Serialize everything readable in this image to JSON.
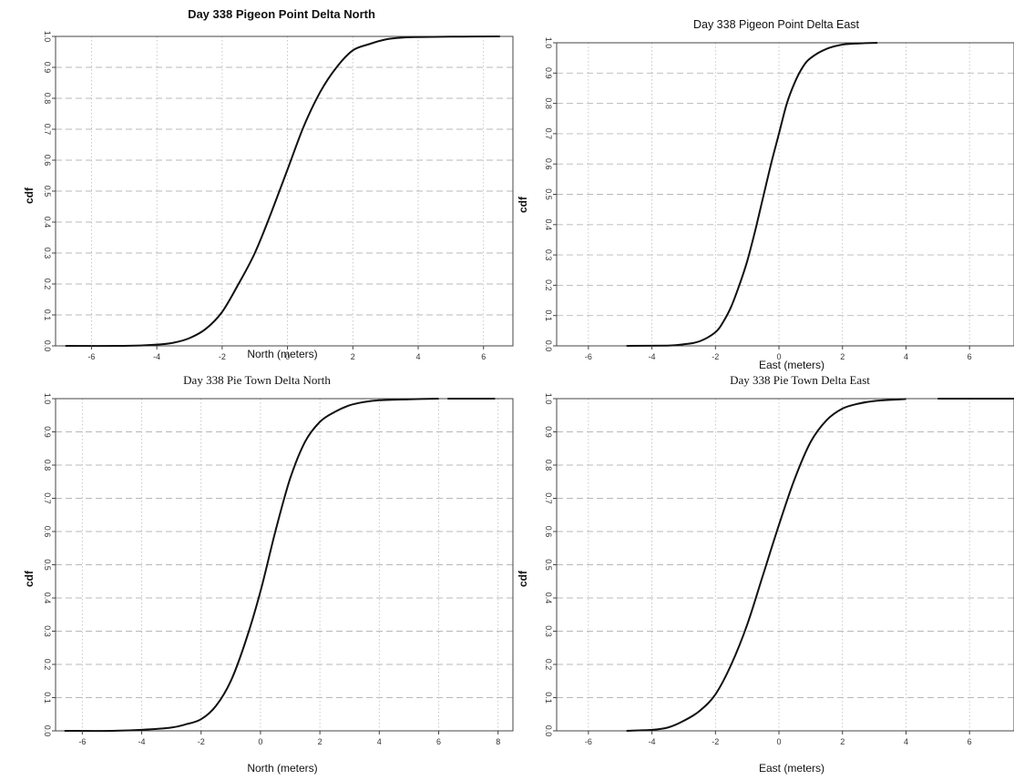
{
  "chart_data": [
    {
      "type": "line",
      "title": "Day 338 Pigeon Point Delta North",
      "xlabel": "North (meters)",
      "ylabel": "cdf",
      "xlim": [
        -7.1,
        6.9
      ],
      "ylim": [
        0,
        1
      ],
      "xticks": [
        -6,
        -4,
        -2,
        0,
        2,
        4,
        6
      ],
      "yticks": [
        0,
        0.1,
        0.2,
        0.3,
        0.4,
        0.5,
        0.6,
        0.7,
        0.8,
        0.9,
        1.0
      ],
      "ytick_labels": [
        "0.0",
        "0.1",
        "0.2",
        "0.3",
        "0.4",
        "0.5",
        "0.6",
        "0.7",
        "0.8",
        "0.9",
        "1.0"
      ],
      "grid": true,
      "series": [
        {
          "x": [
            -6.8,
            -5.0,
            -4.0,
            -3.5,
            -3.0,
            -2.5,
            -2.0,
            -1.5,
            -1.0,
            -0.5,
            0.0,
            0.5,
            1.0,
            1.5,
            2.0,
            2.5,
            3.0,
            3.5,
            4.0,
            5.0,
            6.5
          ],
          "y": [
            0.0,
            0.0,
            0.004,
            0.01,
            0.025,
            0.055,
            0.11,
            0.2,
            0.3,
            0.43,
            0.57,
            0.71,
            0.82,
            0.9,
            0.955,
            0.975,
            0.99,
            0.996,
            0.998,
            0.999,
            1.0
          ]
        }
      ]
    },
    {
      "type": "line",
      "title": "Day 338 Pigeon Point Delta East",
      "xlabel": "East (meters)",
      "ylabel": "cdf",
      "xlim": [
        -7.0,
        7.4
      ],
      "ylim": [
        0,
        1
      ],
      "xticks": [
        -6,
        -4,
        -2,
        0,
        2,
        4,
        6
      ],
      "yticks": [
        0,
        0.1,
        0.2,
        0.3,
        0.4,
        0.5,
        0.6,
        0.7,
        0.8,
        0.9,
        1.0
      ],
      "ytick_labels": [
        "0.0",
        "0.1",
        "0.2",
        "0.3",
        "0.4",
        "0.5",
        "0.6",
        "0.7",
        "0.8",
        "0.9",
        "1.0"
      ],
      "grid": true,
      "series": [
        {
          "x": [
            -4.8,
            -3.5,
            -3.0,
            -2.5,
            -2.0,
            -1.75,
            -1.5,
            -1.25,
            -1.0,
            -0.75,
            -0.5,
            -0.25,
            0.0,
            0.25,
            0.5,
            0.75,
            1.0,
            1.5,
            2.0,
            2.5,
            3.1
          ],
          "y": [
            0.0,
            0.001,
            0.005,
            0.015,
            0.045,
            0.08,
            0.13,
            0.2,
            0.28,
            0.38,
            0.49,
            0.6,
            0.7,
            0.8,
            0.87,
            0.92,
            0.95,
            0.98,
            0.994,
            0.998,
            1.0
          ]
        }
      ]
    },
    {
      "type": "line",
      "title": "Day 338 Pie Town Delta North",
      "xlabel": "North (meters)",
      "ylabel": "cdf",
      "xlim": [
        -6.9,
        8.5
      ],
      "ylim": [
        0,
        1
      ],
      "xticks": [
        -6,
        -4,
        -2,
        0,
        2,
        4,
        6,
        8
      ],
      "yticks": [
        0,
        0.1,
        0.2,
        0.3,
        0.4,
        0.5,
        0.6,
        0.7,
        0.8,
        0.9,
        1.0
      ],
      "ytick_labels": [
        "0.0",
        "0.1",
        "0.2",
        "0.3",
        "0.4",
        "0.5",
        "0.6",
        "0.7",
        "0.8",
        "0.9",
        "1.0"
      ],
      "grid": true,
      "series": [
        {
          "x": [
            -6.6,
            -5.0,
            -4.0,
            -3.0,
            -2.5,
            -2.0,
            -1.5,
            -1.0,
            -0.5,
            0.0,
            0.5,
            1.0,
            1.5,
            2.0,
            2.5,
            3.0,
            3.5,
            4.0,
            5.0,
            6.0
          ],
          "y": [
            0.0,
            0.0,
            0.003,
            0.01,
            0.02,
            0.035,
            0.075,
            0.15,
            0.27,
            0.42,
            0.6,
            0.76,
            0.87,
            0.93,
            0.96,
            0.98,
            0.99,
            0.995,
            0.998,
            1.0
          ]
        },
        {
          "x": [
            6.3,
            7.9
          ],
          "y": [
            1.0,
            1.0
          ]
        }
      ]
    },
    {
      "type": "line",
      "title": "Day 338 Pie Town Delta East",
      "xlabel": "East (meters)",
      "ylabel": "cdf",
      "xlim": [
        -7.0,
        7.4
      ],
      "ylim": [
        0,
        1
      ],
      "xticks": [
        -6,
        -4,
        -2,
        0,
        2,
        4,
        6
      ],
      "yticks": [
        0,
        0.1,
        0.2,
        0.3,
        0.4,
        0.5,
        0.6,
        0.7,
        0.8,
        0.9,
        1.0
      ],
      "ytick_labels": [
        "0.0",
        "0.1",
        "0.2",
        "0.3",
        "0.4",
        "0.5",
        "0.6",
        "0.7",
        "0.8",
        "0.9",
        "1.0"
      ],
      "grid": true,
      "series": [
        {
          "x": [
            -4.8,
            -4.0,
            -3.5,
            -3.0,
            -2.5,
            -2.0,
            -1.5,
            -1.0,
            -0.5,
            0.0,
            0.5,
            1.0,
            1.5,
            2.0,
            2.5,
            3.0,
            4.0
          ],
          "y": [
            0.0,
            0.003,
            0.01,
            0.03,
            0.06,
            0.11,
            0.2,
            0.32,
            0.47,
            0.62,
            0.76,
            0.87,
            0.935,
            0.97,
            0.985,
            0.993,
            0.999
          ]
        },
        {
          "x": [
            5.0,
            7.4
          ],
          "y": [
            1.0,
            1.0
          ]
        }
      ]
    }
  ]
}
